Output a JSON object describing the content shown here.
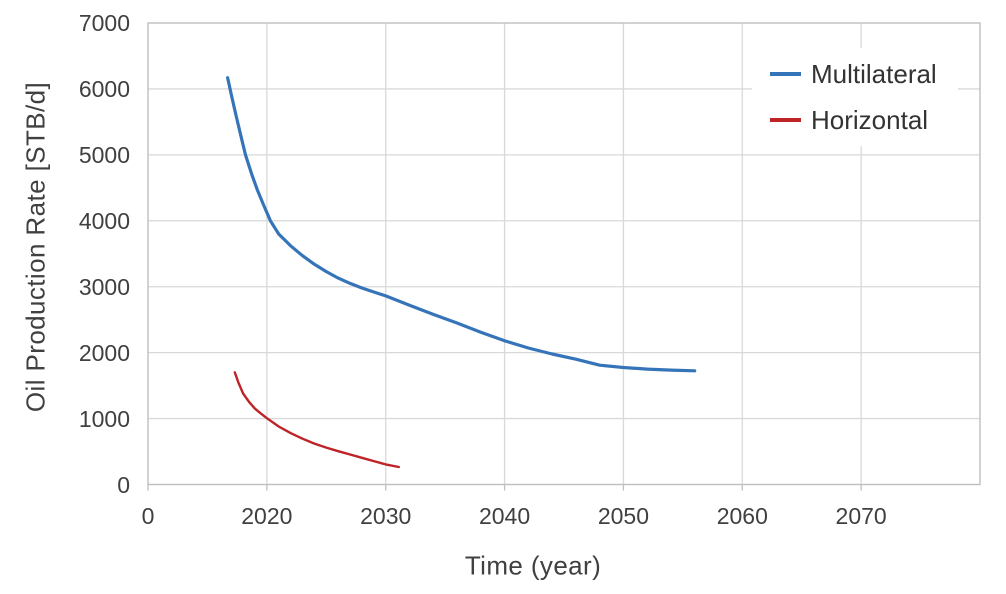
{
  "styles": {
    "background": "#FFFFFF",
    "grid_color": "#D9D9D9",
    "border_color": "#BFBFBF",
    "tick_stub_color": "#BFBFBF",
    "text_color": "#404040",
    "legend_bg": "#FFFFFF"
  },
  "chart_data": {
    "type": "line",
    "title": "",
    "xlabel": "Time (year)",
    "ylabel": "Oil Production Rate [STB/d]",
    "grid": true,
    "legend_position": "top-right-inside",
    "x_axis": {
      "min": 2010,
      "max": 2080,
      "ticks": [
        {
          "value": 2010,
          "label": "0"
        },
        {
          "value": 2020,
          "label": "2020"
        },
        {
          "value": 2030,
          "label": "2030"
        },
        {
          "value": 2040,
          "label": "2040"
        },
        {
          "value": 2050,
          "label": "2050"
        },
        {
          "value": 2060,
          "label": "2060"
        },
        {
          "value": 2070,
          "label": "2070"
        }
      ]
    },
    "y_axis": {
      "min": 0,
      "max": 7000,
      "ticks": [
        {
          "value": 0,
          "label": "0"
        },
        {
          "value": 1000,
          "label": "1000"
        },
        {
          "value": 2000,
          "label": "2000"
        },
        {
          "value": 3000,
          "label": "3000"
        },
        {
          "value": 4000,
          "label": "4000"
        },
        {
          "value": 5000,
          "label": "5000"
        },
        {
          "value": 6000,
          "label": "6000"
        },
        {
          "value": 7000,
          "label": "7000"
        }
      ]
    },
    "series": [
      {
        "name": "Multilateral",
        "color": "#3674B9",
        "line_width": 3.2,
        "points": [
          [
            2016.7,
            6170
          ],
          [
            2017.0,
            5920
          ],
          [
            2017.4,
            5600
          ],
          [
            2017.8,
            5300
          ],
          [
            2018.2,
            5000
          ],
          [
            2018.7,
            4720
          ],
          [
            2019.2,
            4470
          ],
          [
            2019.7,
            4250
          ],
          [
            2020.3,
            4000
          ],
          [
            2021,
            3800
          ],
          [
            2022,
            3620
          ],
          [
            2023,
            3470
          ],
          [
            2024,
            3340
          ],
          [
            2025,
            3230
          ],
          [
            2026,
            3130
          ],
          [
            2027,
            3050
          ],
          [
            2028,
            2980
          ],
          [
            2029,
            2920
          ],
          [
            2030,
            2860
          ],
          [
            2032,
            2720
          ],
          [
            2034,
            2580
          ],
          [
            2036,
            2450
          ],
          [
            2038,
            2310
          ],
          [
            2040,
            2180
          ],
          [
            2042,
            2070
          ],
          [
            2044,
            1980
          ],
          [
            2046,
            1900
          ],
          [
            2048,
            1810
          ],
          [
            2050,
            1775
          ],
          [
            2052,
            1750
          ],
          [
            2054,
            1735
          ],
          [
            2056,
            1725
          ]
        ]
      },
      {
        "name": "Horizontal",
        "color": "#BE2328",
        "line_width": 2.4,
        "points": [
          [
            2017.3,
            1700
          ],
          [
            2017.6,
            1550
          ],
          [
            2018,
            1380
          ],
          [
            2018.5,
            1255
          ],
          [
            2019,
            1150
          ],
          [
            2019.5,
            1075
          ],
          [
            2020,
            1005
          ],
          [
            2021,
            880
          ],
          [
            2022,
            780
          ],
          [
            2023,
            695
          ],
          [
            2024,
            620
          ],
          [
            2025,
            560
          ],
          [
            2026,
            505
          ],
          [
            2027,
            455
          ],
          [
            2028,
            405
          ],
          [
            2029,
            355
          ],
          [
            2030,
            305
          ],
          [
            2031.1,
            265
          ]
        ]
      }
    ]
  }
}
